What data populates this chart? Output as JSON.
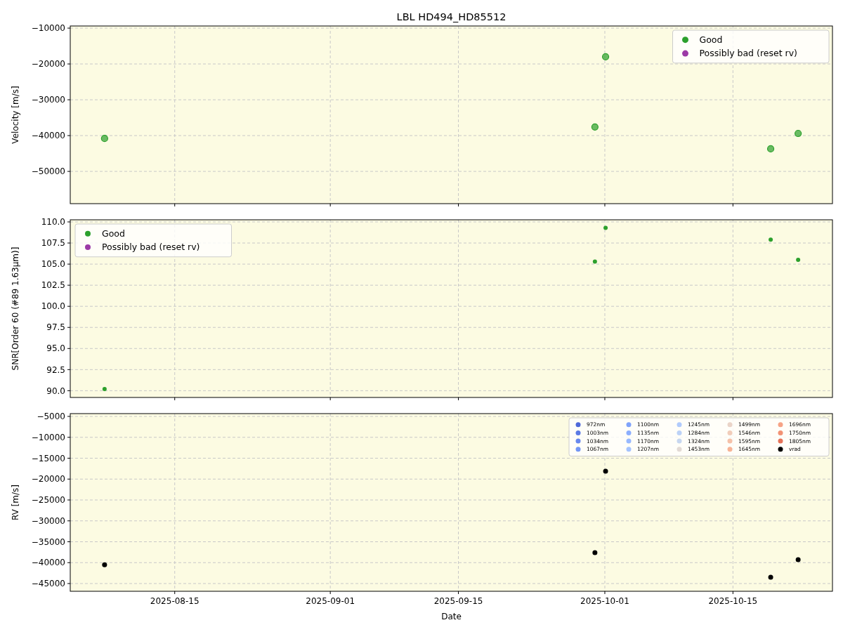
{
  "chart_data": [
    {
      "type": "scatter",
      "title": "LBL HD494_HD85512",
      "ylabel": "Velocity [m/s]",
      "x": [
        "2025-08-07T08:00",
        "2025-09-29T22:00",
        "2025-10-01T02:00",
        "2025-10-19T03:00",
        "2025-10-22T03:00"
      ],
      "series": [
        {
          "name": "Good",
          "color": "#2ca02c",
          "values": [
            -40800,
            -37600,
            -18000,
            -43700,
            -39400
          ]
        },
        {
          "name": "Possibly bad (reset rv)",
          "color": "#9c3aa6",
          "values": [
            null,
            null,
            null,
            null,
            null
          ]
        }
      ],
      "xlim": [
        "2025-08-03T14:00",
        "2025-10-25T21:00"
      ],
      "xticks": [
        "2025-08-15",
        "2025-09-01",
        "2025-09-15",
        "2025-10-01",
        "2025-10-15"
      ],
      "ylim": [
        -59000,
        -9400
      ],
      "yticks": [
        -50000,
        -40000,
        -30000,
        -20000,
        -10000
      ],
      "grid": true,
      "legend": "top right",
      "marker": "circle",
      "tick_labels": "y"
    },
    {
      "type": "scatter",
      "ylabel": "SNR[Order 60 (#89 1.63μm)]",
      "x": [
        "2025-08-07T08:00",
        "2025-09-29T22:00",
        "2025-10-01T02:00",
        "2025-10-19T03:00",
        "2025-10-22T03:00"
      ],
      "series": [
        {
          "name": "Good",
          "color": "#2ca02c",
          "values": [
            90.2,
            105.3,
            109.3,
            107.9,
            105.5
          ]
        },
        {
          "name": "Possibly bad (reset rv)",
          "color": "#9c3aa6",
          "values": [
            null,
            null,
            null,
            null,
            null
          ]
        }
      ],
      "xlim": [
        "2025-08-03T14:00",
        "2025-10-25T21:00"
      ],
      "xticks": [
        "2025-08-15",
        "2025-09-01",
        "2025-09-15",
        "2025-10-01",
        "2025-10-15"
      ],
      "ylim": [
        89.2,
        110.25
      ],
      "yticks": [
        {
          "value": 90,
          "label": "90.0"
        },
        92.5,
        {
          "value": 95,
          "label": "95.0"
        },
        97.5,
        {
          "value": 100,
          "label": "100.0"
        },
        102.5,
        {
          "value": 105,
          "label": "105.0"
        },
        107.5,
        {
          "value": 110,
          "label": "110.0"
        }
      ],
      "grid": true,
      "legend": "top left",
      "marker": "circle",
      "tick_labels": "y"
    },
    {
      "type": "scatter",
      "xlabel": "Date",
      "ylabel": "RV [m/s]",
      "x": [
        "2025-08-07T08:00",
        "2025-09-29T22:00",
        "2025-10-01T02:00",
        "2025-10-19T03:00",
        "2025-10-22T03:00"
      ],
      "series": [
        {
          "name": "972nm",
          "color": "#4f69d9",
          "values": [
            null,
            null,
            null,
            null,
            null
          ]
        },
        {
          "name": "1003nm",
          "color": "#5b7ae5",
          "values": [
            null,
            null,
            null,
            null,
            null
          ]
        },
        {
          "name": "1034nm",
          "color": "#6788ee",
          "values": [
            null,
            null,
            null,
            null,
            null
          ]
        },
        {
          "name": "1067nm",
          "color": "#7396f5",
          "values": [
            null,
            null,
            null,
            null,
            null
          ]
        },
        {
          "name": "1100nm",
          "color": "#80a3fa",
          "values": [
            null,
            null,
            null,
            null,
            null
          ]
        },
        {
          "name": "1135nm",
          "color": "#8caffe",
          "values": [
            null,
            null,
            null,
            null,
            null
          ]
        },
        {
          "name": "1170nm",
          "color": "#98b9ff",
          "values": [
            null,
            null,
            null,
            null,
            null
          ]
        },
        {
          "name": "1207nm",
          "color": "#a5c3fe",
          "values": [
            null,
            null,
            null,
            null,
            null
          ]
        },
        {
          "name": "1245nm",
          "color": "#b1cbfc",
          "values": [
            null,
            null,
            null,
            null,
            null
          ]
        },
        {
          "name": "1284nm",
          "color": "#bcd2f7",
          "values": [
            null,
            null,
            null,
            null,
            null
          ]
        },
        {
          "name": "1324nm",
          "color": "#c7d7f0",
          "values": [
            null,
            null,
            null,
            null,
            null
          ]
        },
        {
          "name": "1453nm",
          "color": "#e2dad5",
          "values": [
            null,
            null,
            null,
            null,
            null
          ]
        },
        {
          "name": "1499nm",
          "color": "#ead4c8",
          "values": [
            null,
            null,
            null,
            null,
            null
          ]
        },
        {
          "name": "1546nm",
          "color": "#f1cdba",
          "values": [
            null,
            null,
            null,
            null,
            null
          ]
        },
        {
          "name": "1595nm",
          "color": "#f5c1a9",
          "values": [
            null,
            null,
            null,
            null,
            null
          ]
        },
        {
          "name": "1645nm",
          "color": "#f7b396",
          "values": [
            null,
            null,
            null,
            null,
            null
          ]
        },
        {
          "name": "1696nm",
          "color": "#f6a385",
          "values": [
            null,
            null,
            null,
            null,
            null
          ]
        },
        {
          "name": "1750nm",
          "color": "#f29274",
          "values": [
            null,
            null,
            null,
            null,
            null
          ]
        },
        {
          "name": "1805nm",
          "color": "#e67259",
          "values": [
            null,
            null,
            null,
            null,
            null
          ]
        },
        {
          "name": "vrad",
          "color": "#000000",
          "values": [
            -40500,
            -37600,
            -18100,
            -43500,
            -39300
          ]
        }
      ],
      "xlim": [
        "2025-08-03T14:00",
        "2025-10-25T21:00"
      ],
      "xticks": [
        "2025-08-15",
        "2025-09-01",
        "2025-09-15",
        "2025-10-01",
        "2025-10-15"
      ],
      "ylim": [
        -46850,
        -4330
      ],
      "yticks": [
        -45000,
        -40000,
        -35000,
        -30000,
        -25000,
        -20000,
        -15000,
        -10000,
        -5000
      ],
      "grid": true,
      "legend": "top right",
      "marker": "circle"
    }
  ]
}
